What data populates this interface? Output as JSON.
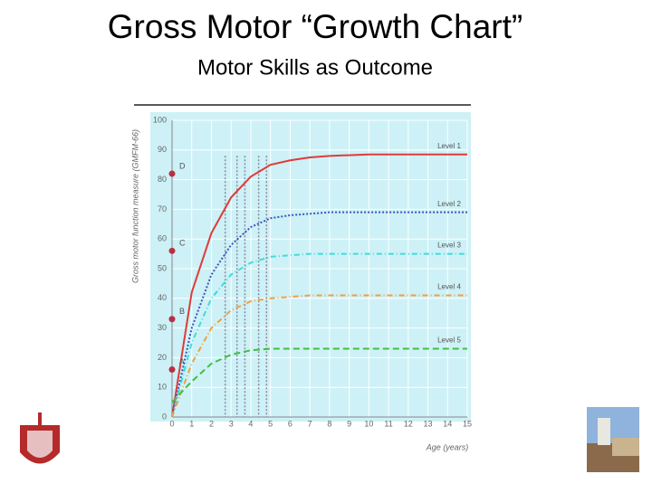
{
  "chart_data": {
    "type": "line",
    "title": "Gross Motor “Growth Chart”",
    "subtitle": "Motor Skills as Outcome",
    "x_label": "Age (years)",
    "y_label": "Gross motor function measure (GMFM-66)",
    "x": [
      0,
      1,
      2,
      3,
      4,
      5,
      6,
      7,
      8,
      10,
      12,
      15
    ],
    "xlim": [
      0,
      15
    ],
    "xticks": [
      0,
      1,
      2,
      3,
      4,
      5,
      6,
      7,
      8,
      9,
      10,
      11,
      12,
      13,
      14,
      15
    ],
    "ylim": [
      0,
      100
    ],
    "yticks": [
      0,
      10,
      20,
      30,
      40,
      50,
      60,
      70,
      80,
      90,
      100
    ],
    "grid": true,
    "series": [
      {
        "name": "Level 1",
        "color": "#e03a3a",
        "style": "solid",
        "values": [
          0,
          42,
          62,
          74,
          81,
          85,
          86.5,
          87.5,
          88,
          88.5,
          88.5,
          88.5
        ]
      },
      {
        "name": "Level 2",
        "color": "#3a55c0",
        "style": "dotted",
        "values": [
          0,
          30,
          48,
          58,
          64,
          67,
          68,
          68.5,
          69,
          69,
          69,
          69
        ]
      },
      {
        "name": "Level 3",
        "color": "#3fdcdc",
        "style": "dashdot",
        "values": [
          0,
          25,
          40,
          48,
          52,
          54,
          54.5,
          55,
          55,
          55,
          55,
          55
        ]
      },
      {
        "name": "Level 4",
        "color": "#f0a040",
        "style": "dashdot",
        "values": [
          0,
          18,
          30,
          36,
          39,
          40,
          40.5,
          41,
          41,
          41,
          41,
          41
        ]
      },
      {
        "name": "Level 5",
        "color": "#40c040",
        "style": "dashed",
        "values": [
          5,
          12,
          18,
          21,
          22.5,
          23,
          23,
          23,
          23,
          23,
          23,
          23
        ]
      }
    ],
    "vlines": [
      2.7,
      3.3,
      3.7,
      4.4,
      4.8
    ],
    "annotations": [
      {
        "text": "A",
        "value": 16
      },
      {
        "text": "B",
        "value": 33
      },
      {
        "text": "C",
        "value": 56
      },
      {
        "text": "D",
        "value": 82
      }
    ]
  }
}
